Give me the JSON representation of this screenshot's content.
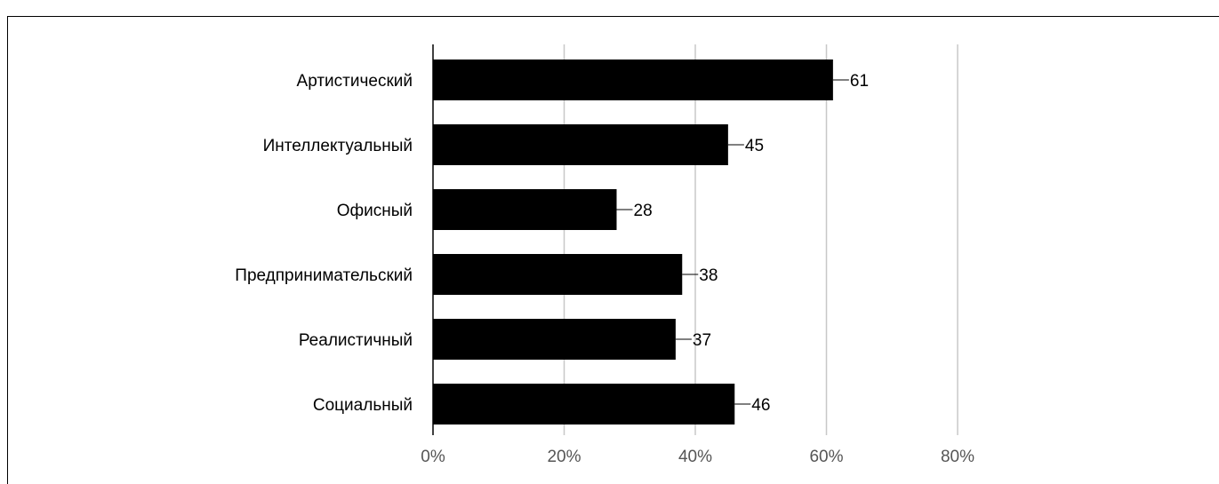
{
  "chart_data": {
    "type": "bar",
    "orientation": "horizontal",
    "categories": [
      "Артистический",
      "Интеллектуальный",
      "Офисный",
      "Предпринимательский",
      "Реалистичный",
      "Социальный"
    ],
    "values": [
      61,
      45,
      28,
      38,
      37,
      46
    ],
    "value_labels": [
      "61",
      "45",
      "28",
      "38",
      "37",
      "46"
    ],
    "x_ticks": [
      "0%",
      "20%",
      "40%",
      "60%",
      "80%"
    ],
    "x_tick_values": [
      0,
      20,
      40,
      60,
      80
    ],
    "xlim": [
      0,
      80
    ],
    "grid": true,
    "colors": {
      "bar": "#000000",
      "grid": "#c8c8c8",
      "axis": "#000000",
      "tick_text": "#555555"
    }
  }
}
